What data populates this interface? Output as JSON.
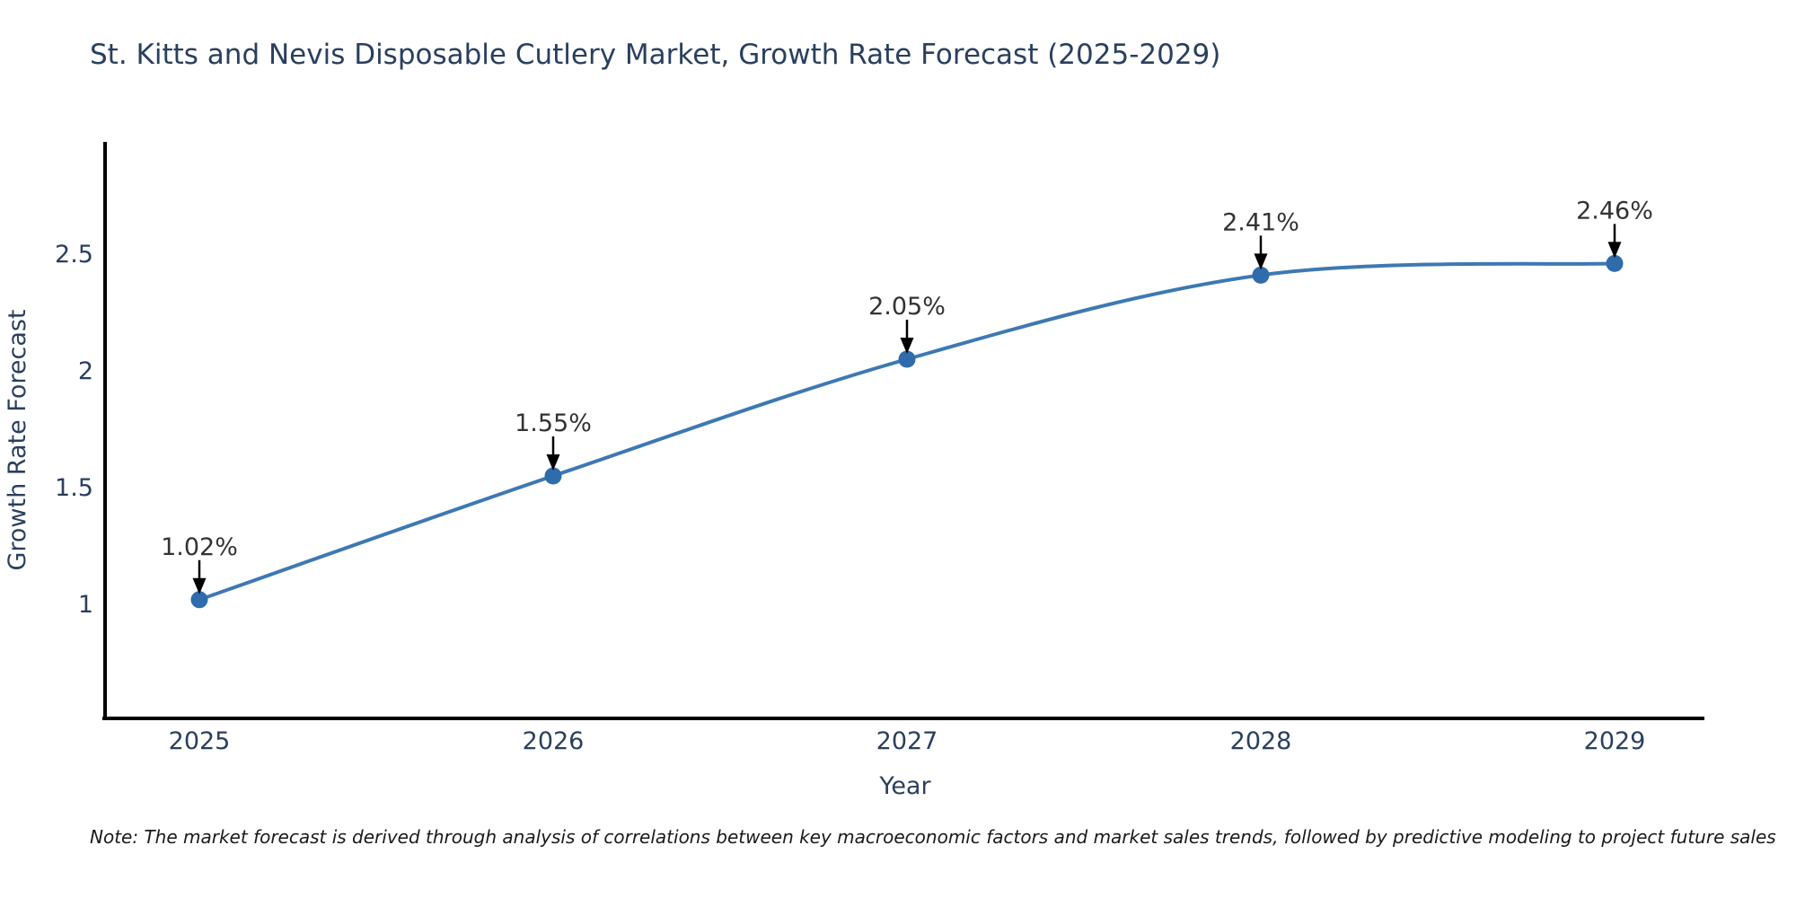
{
  "note": {
    "text": "Note: The market forecast is derived through analysis of correlations between key macroeconomic factors and market sales trends, followed by predictive modeling to project future sales"
  },
  "chart_data": {
    "type": "line",
    "title": "St. Kitts and Nevis Disposable Cutlery Market, Growth Rate Forecast (2025-2029)",
    "xlabel": "Year",
    "ylabel": "Growth Rate Forecast",
    "x": [
      2025,
      2026,
      2027,
      2028,
      2029
    ],
    "y": [
      1.02,
      1.55,
      2.05,
      2.41,
      2.46
    ],
    "point_labels": [
      "1.02%",
      "1.55%",
      "2.05%",
      "2.41%",
      "2.46%"
    ],
    "x_tick_labels": [
      "2025",
      "2026",
      "2027",
      "2028",
      "2029"
    ],
    "y_ticks": [
      1,
      1.5,
      2,
      2.5
    ],
    "y_tick_labels": [
      "1",
      "1.5",
      "2",
      "2.5"
    ],
    "xlim": [
      2024.73,
      2029.26
    ],
    "ylim": [
      0.51,
      2.98
    ],
    "grid": false,
    "legend": "none",
    "line_color": "#3d79b3",
    "marker_color": "#2f6cab",
    "axis_color": "#000000",
    "arrow_color": "#000000",
    "title_color": "#2a3f5f",
    "tick_color": "#2a3f5f",
    "axis_title_color": "#2a3f5f",
    "annotation_color": "#333333"
  }
}
